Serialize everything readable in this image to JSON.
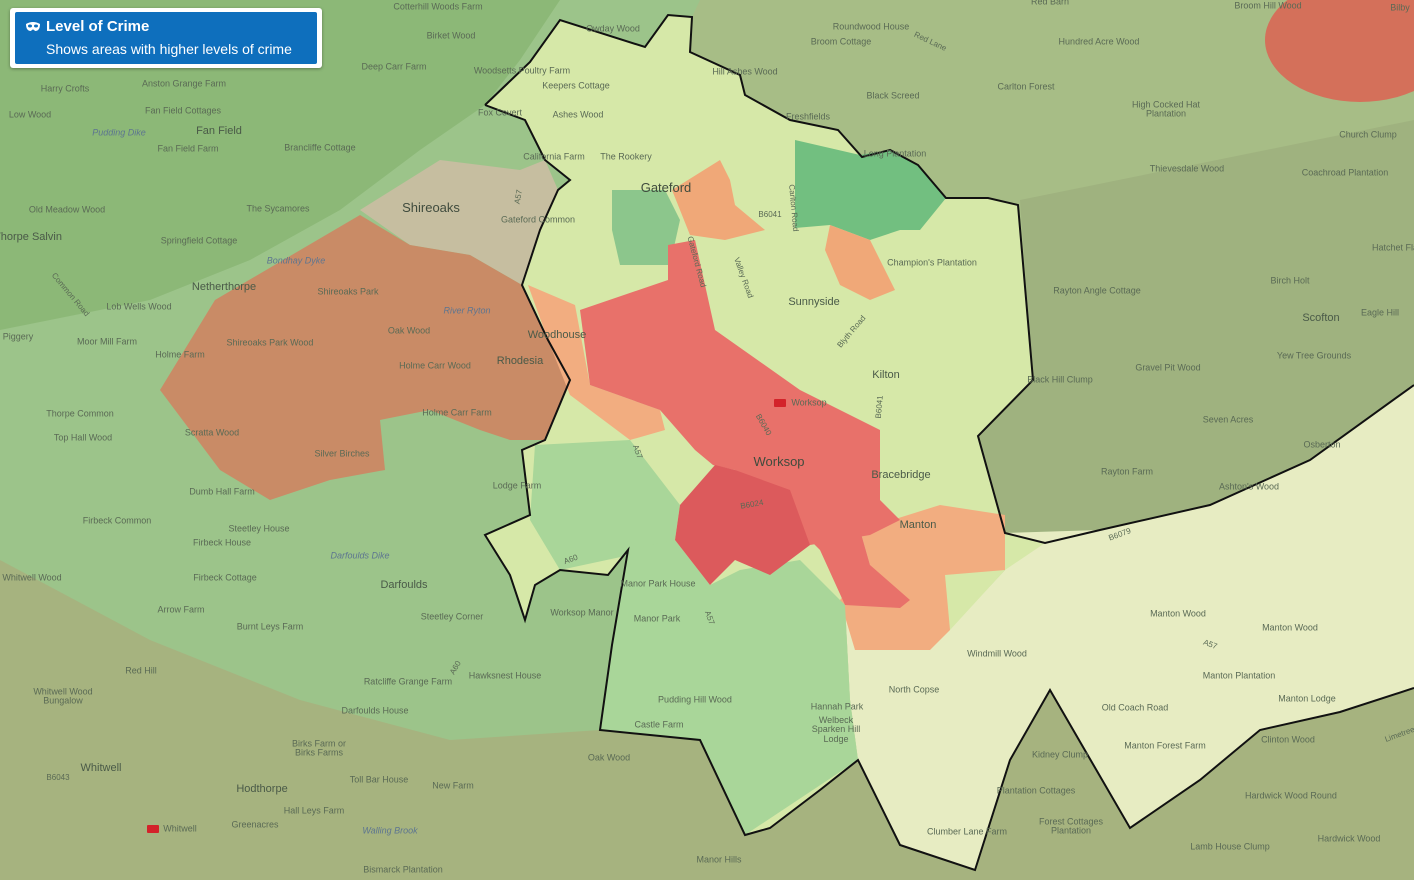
{
  "legend": {
    "title": "Level of Crime",
    "subtitle": "Shows areas with higher levels of crime"
  },
  "places": [
    "Cotterhill Woods Farm",
    "Red Barn",
    "Broom Hill Wood",
    "Bilby",
    "Owday Wood",
    "Roundwood House",
    "Birket Wood",
    "Red Lane",
    "Broom Cottage",
    "Hundred Acre Wood",
    "Deep Carr Farm",
    "Woodsetts Poultry Farm",
    "Hill Ashes Wood",
    "Keepers Cottage",
    "Anston Grange Farm",
    "Carlton Forest",
    "Harry Crofts",
    "Black Screed",
    "High Cocked Hat Plantation",
    "Fan Field Cottages",
    "Fox Covert",
    "Ashes Wood",
    "Low Wood",
    "Freshfields",
    "Pudding Dike",
    "Fan Field",
    "Church Clump",
    "Fan Field Farm",
    "Brancliffe Cottage",
    "Long Plantation",
    "California Farm",
    "The Rookery",
    "Thievesdale Wood",
    "Coachroad Plantation",
    "Gateford",
    "A57",
    "B6041",
    "Carlton Road",
    "Old Meadow Wood",
    "The Sycamores",
    "Shireoaks",
    "Gateford Common",
    "Springfield Cottage",
    "Thorpe Salvin",
    "Hatchet Fla",
    "Gateford Road",
    "Bondhay Dyke",
    "Champion's Plantation",
    "Valley Road",
    "Birch Holt",
    "Common Road",
    "Netherthorpe",
    "Shireoaks Park",
    "Rayton Angle Cottage",
    "Sunnyside",
    "Lob Wells Wood",
    "River Ryton",
    "Scofton",
    "Eagle Hill",
    "Blyth Road",
    "Oak Wood",
    "Piggery",
    "Woodhouse",
    "Moor Mill Farm",
    "Shireoaks Park Wood",
    "Holme Farm",
    "Yew Tree Grounds",
    "Rhodesia",
    "Holme Carr Wood",
    "Gravel Pit Wood",
    "Kilton",
    "Black Hill Clump",
    "Worksop",
    "B6040",
    "B6041",
    "Thorpe Common",
    "Holme Carr Farm",
    "Seven Acres",
    "Scratta Wood",
    "Top Hall Wood",
    "Osberton",
    "Silver Birches",
    "A57",
    "Worksop",
    "Rayton Farm",
    "Bracebridge",
    "Lodge Farm",
    "Dumb Hall Farm",
    "Ashton's Wood",
    "B6024",
    "Firbeck Common",
    "Manton",
    "B6079",
    "Steetley House",
    "Firbeck House",
    "Darfoulds Dike",
    "A60",
    "Whitwell Wood",
    "Firbeck Cottage",
    "Manor Park House",
    "Darfoulds",
    "Arrow Farm",
    "Worksop Manor",
    "Manton Wood",
    "Steetley Corner",
    "Manor Park",
    "A57",
    "Burnt Leys Farm",
    "Manton Wood",
    "A57",
    "Windmill Wood",
    "Red Hill",
    "Manton Plantation",
    "Hawksnest House",
    "A60",
    "Ratcliffe Grange Farm",
    "North Copse",
    "Whitwell Wood Bungalow",
    "Pudding Hill Wood",
    "Manton Lodge",
    "Hannah Park",
    "Old Coach Road",
    "Darfoulds House",
    "Castle Farm",
    "Welbeck Sparken Hill Lodge",
    "Clinton Wood",
    "Limetree",
    "Birks Farm or Birks Farms",
    "Manton Forest Farm",
    "Kidney Clump",
    "Oak Wood",
    "Whitwell",
    "B6043",
    "Toll Bar House",
    "New Farm",
    "Hodthorpe",
    "Plantation Cottages",
    "Hardwick Wood Round",
    "Hall Leys Farm",
    "Forest Cottages Plantation",
    "Greenacres",
    "Whitwell",
    "Walling Brook",
    "Clumber Lane Farm",
    "Hardwick Wood",
    "Lamb House Clump",
    "Manor Hills",
    "Bismarck Plantation"
  ]
}
